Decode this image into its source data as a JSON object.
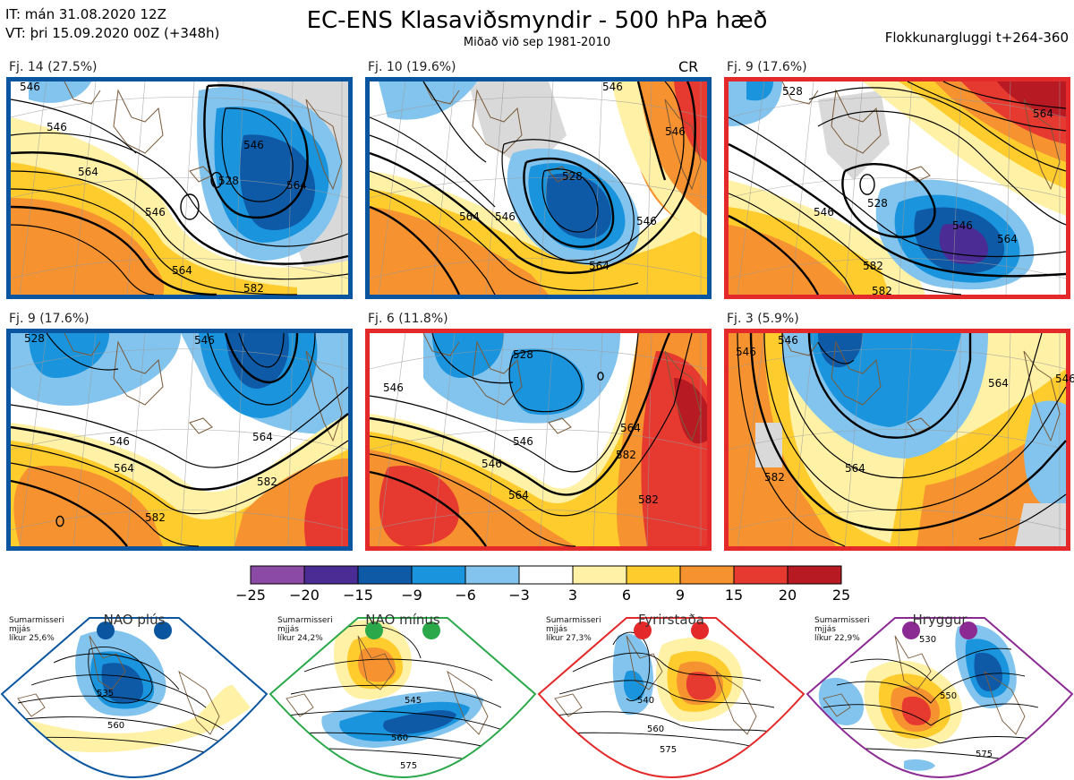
{
  "header": {
    "issue_time": "IT: mán 31.08.2020 12Z",
    "valid_time": "VT: þri 15.09.2020 00Z  (+348h)",
    "title": "EC-ENS Klasaviðsmyndir - 500 hPa hæð",
    "subtitle": "Miðað við sep 1981-2010",
    "window": "Flokkunargluggi t+264-360"
  },
  "clusters": [
    {
      "label": "Fj. 14 (27.5%)",
      "border_color": "#0a55a0",
      "code": "",
      "contours": [
        "546",
        "564",
        "546",
        "528",
        "564",
        "546",
        "564",
        "582",
        "546"
      ]
    },
    {
      "label": "Fj. 10 (19.6%)",
      "border_color": "#0a55a0",
      "code": "CR",
      "contours": [
        "546",
        "564",
        "546",
        "528",
        "546",
        "564",
        "546"
      ]
    },
    {
      "label": "Fj. 9 (17.6%)",
      "border_color": "#e3292a",
      "code": "",
      "contours": [
        "528",
        "564",
        "546",
        "528",
        "546",
        "564",
        "582",
        "582"
      ]
    },
    {
      "label": "Fj. 9 (17.6%)",
      "border_color": "#0a55a0",
      "code": "",
      "contours": [
        "528",
        "546",
        "546",
        "564",
        "564",
        "582",
        "582"
      ]
    },
    {
      "label": "Fj. 6 (11.8%)",
      "border_color": "#e3292a",
      "code": "",
      "contours": [
        "546",
        "528",
        "546",
        "564",
        "546",
        "582",
        "564",
        "582"
      ]
    },
    {
      "label": "Fj. 3 (5.9%)",
      "border_color": "#e3292a",
      "code": "",
      "contours": [
        "546",
        "546",
        "564",
        "564",
        "546",
        "582"
      ]
    }
  ],
  "legend": {
    "ticks": [
      "−25",
      "−20",
      "−15",
      "−9",
      "−6",
      "−3",
      "3",
      "6",
      "9",
      "15",
      "20",
      "25"
    ],
    "colors": [
      "#8b4aa6",
      "#4a2c94",
      "#0e5aa7",
      "#1a94dc",
      "#82c4ee",
      "#ffffff",
      "#fff1a6",
      "#ffcc2e",
      "#f6922f",
      "#e63a30",
      "#b71a22"
    ]
  },
  "regimes": [
    {
      "title": "NAO plús",
      "caption": [
        "Sumarmisseri",
        "mjjás",
        "líkur 25,6%"
      ],
      "color": "#0a55a0",
      "contours": [
        "535",
        "560"
      ]
    },
    {
      "title": "NAO mínus",
      "caption": [
        "Sumarmisseri",
        "mjjás",
        "líkur 24,2%"
      ],
      "color": "#2aa84a",
      "contours": [
        "545",
        "560",
        "575"
      ]
    },
    {
      "title": "Fyrirstaða",
      "caption": [
        "Sumarmisseri",
        "mjjás",
        "líkur 27,3%"
      ],
      "color": "#e3292a",
      "contours": [
        "540",
        "560",
        "575"
      ]
    },
    {
      "title": "Hryggur",
      "caption": [
        "Sumarmisseri",
        "mjjás",
        "líkur 22,9%"
      ],
      "color": "#8c2a93",
      "contours": [
        "530",
        "550",
        "575"
      ]
    }
  ]
}
